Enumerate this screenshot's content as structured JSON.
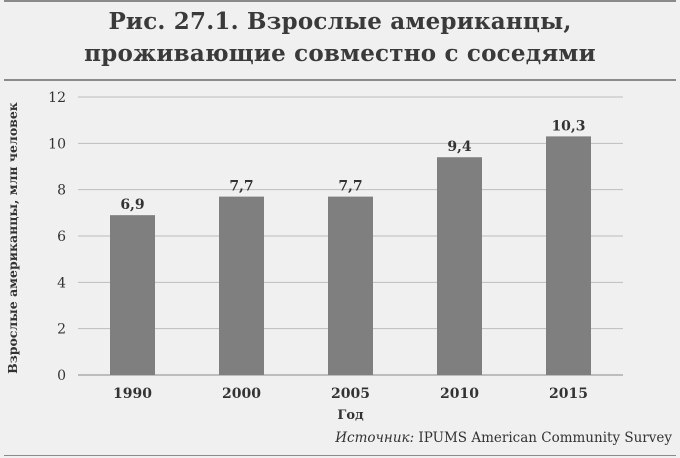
{
  "title_lines": [
    "Рис. 27.1. Взрослые американцы,",
    "проживающие совместно с соседями"
  ],
  "source": {
    "label": "Источник:",
    "text": "IPUMS American Community Survey"
  },
  "colors": {
    "bar": "#7f7f7f",
    "grid": "#bdbdbd",
    "axis": "#8a8a8a",
    "text": "#333333"
  },
  "chart_data": {
    "type": "bar",
    "categories": [
      "1990",
      "2000",
      "2005",
      "2010",
      "2015"
    ],
    "values": [
      6.9,
      7.7,
      7.7,
      9.4,
      10.3
    ],
    "value_labels": [
      "6,9",
      "7,7",
      "7,7",
      "9,4",
      "10,3"
    ],
    "xlabel": "Год",
    "ylabel": "Взрослые американцы, млн человек",
    "ylim": [
      0,
      12
    ],
    "yticks": [
      0,
      2,
      4,
      6,
      8,
      10,
      12
    ],
    "grid": true,
    "legend": "none"
  }
}
